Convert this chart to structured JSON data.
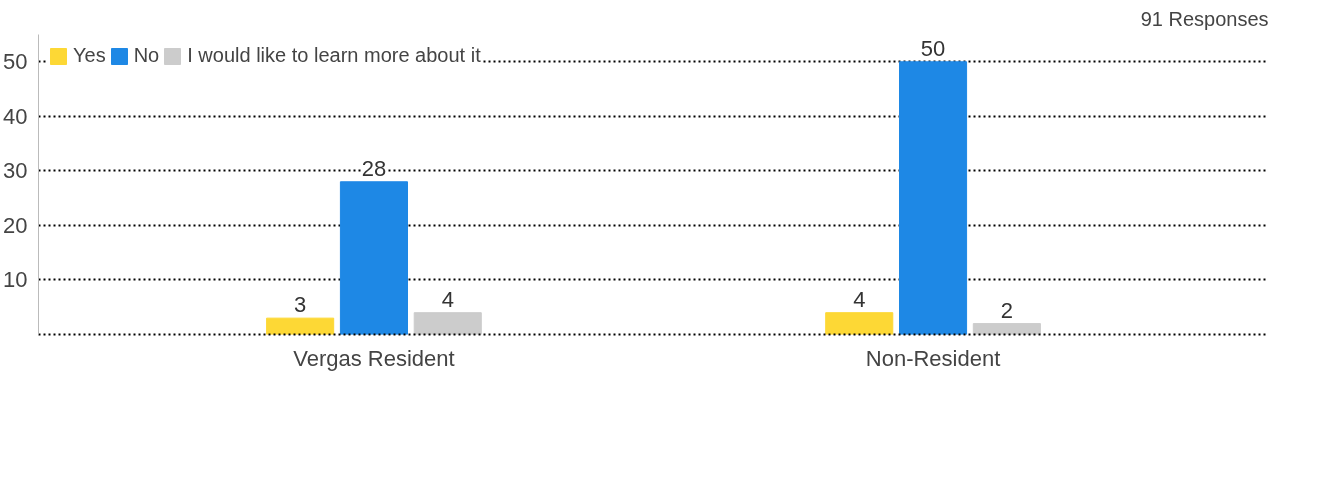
{
  "chart_data": {
    "type": "bar",
    "title": "91 Responses",
    "categories": [
      "Vergas Resident",
      "Non-Resident"
    ],
    "series": [
      {
        "name": "Yes",
        "color": "#fdd835",
        "values": [
          3,
          4
        ]
      },
      {
        "name": "No",
        "color": "#1e88e5",
        "values": [
          28,
          50
        ]
      },
      {
        "name": "I would like to learn more about it",
        "color": "#cccccc",
        "values": [
          4,
          2
        ]
      }
    ],
    "ylim": [
      0,
      55
    ],
    "yticks": [
      {
        "value": 0,
        "label": null
      },
      10,
      20,
      30,
      40,
      50
    ],
    "grid": "y",
    "legend": "top left",
    "data_labels": true
  }
}
